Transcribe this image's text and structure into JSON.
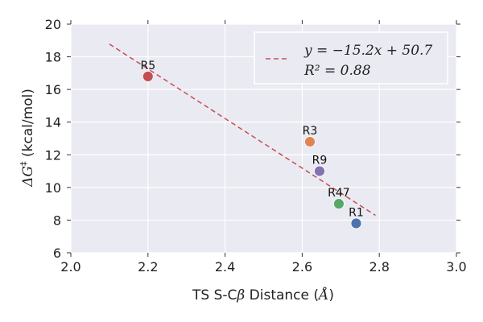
{
  "chart_data": {
    "type": "scatter",
    "xlabel_prefix": "TS S-C",
    "xlabel_beta": "β",
    "xlabel_mid": " Distance (",
    "xlabel_unit": "Å",
    "xlabel_suffix": ")",
    "ylabel_main": "ΔG",
    "ylabel_sup": "‡",
    "ylabel_unit": " (kcal/mol)",
    "xlim": [
      2.0,
      3.0
    ],
    "ylim": [
      6,
      20
    ],
    "xticks": [
      "2.0",
      "2.2",
      "2.4",
      "2.6",
      "2.8",
      "3.0"
    ],
    "yticks": [
      "6",
      "8",
      "10",
      "12",
      "14",
      "16",
      "18",
      "20"
    ],
    "grid": true,
    "legend_position": "top-right",
    "points": [
      {
        "label": "R5",
        "x": 2.2,
        "y": 16.8,
        "color": "#c44e52"
      },
      {
        "label": "R3",
        "x": 2.62,
        "y": 12.8,
        "color": "#dd8452"
      },
      {
        "label": "R9",
        "x": 2.645,
        "y": 11.0,
        "color": "#8172b2"
      },
      {
        "label": "R47",
        "x": 2.695,
        "y": 9.0,
        "color": "#55a868"
      },
      {
        "label": "R1",
        "x": 2.74,
        "y": 7.8,
        "color": "#4c72b0"
      }
    ],
    "fit": {
      "slope": -15.2,
      "intercept": 50.7,
      "x_range": [
        2.1,
        2.79
      ],
      "color": "#c44e52",
      "legend_line1": "y = −15.2x + 50.7",
      "legend_line2": "R² = 0.88"
    },
    "background_color": "#eaeaf2"
  }
}
